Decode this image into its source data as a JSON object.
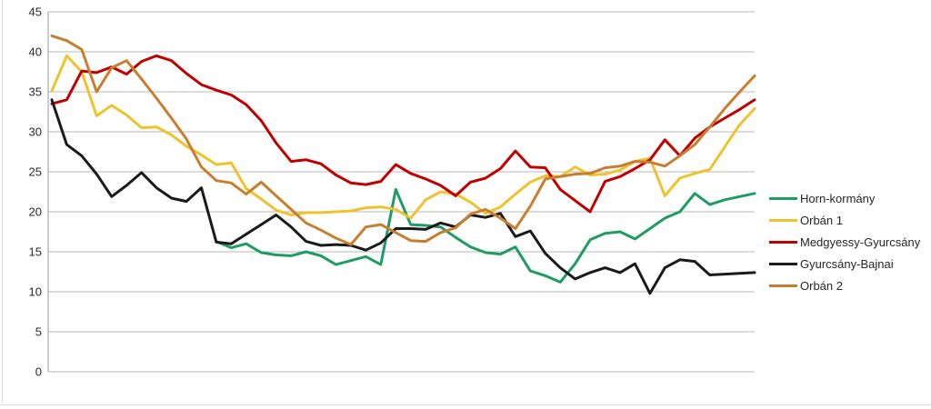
{
  "chart_data": {
    "type": "line",
    "title": "",
    "xlabel": "",
    "ylabel": "",
    "x_unit": "month-of-term (1-48), no x tick labels shown",
    "ylim": [
      0,
      45
    ],
    "yticks": [
      0,
      5,
      10,
      15,
      20,
      25,
      30,
      35,
      40,
      45
    ],
    "grid": true,
    "legend_position": "right",
    "background": "#ffffff",
    "gridline_color": "#b9b9b9",
    "series": [
      {
        "name": "Horn-kormány",
        "color": "#1E9C64",
        "values": [
          null,
          null,
          null,
          null,
          null,
          null,
          null,
          null,
          null,
          null,
          null,
          16.3,
          15.5,
          16.0,
          14.9,
          14.6,
          14.5,
          15.0,
          14.5,
          13.4,
          13.9,
          14.4,
          13.4,
          22.8,
          18.4,
          18.3,
          18.1,
          16.8,
          15.6,
          14.9,
          14.7,
          15.6,
          12.6,
          12.0,
          11.2,
          13.5,
          16.5,
          17.3,
          17.5,
          16.6,
          17.9,
          19.2,
          20.0,
          22.3,
          20.9,
          21.5,
          21.9,
          22.3
        ]
      },
      {
        "name": "Orbán 1",
        "color": "#EEC32D",
        "values": [
          35.1,
          39.5,
          37.5,
          32.0,
          33.3,
          32.1,
          30.5,
          30.6,
          29.6,
          28.2,
          27.1,
          25.9,
          26.1,
          22.9,
          21.6,
          20.2,
          19.6,
          19.9,
          19.9,
          20.0,
          20.1,
          20.5,
          20.6,
          20.3,
          19.2,
          21.5,
          22.5,
          22.2,
          21.2,
          19.8,
          20.6,
          22.2,
          23.7,
          24.5,
          24.4,
          25.6,
          24.6,
          24.7,
          25.2,
          26.3,
          26.7,
          22.0,
          24.2,
          24.8,
          25.3,
          28.1,
          30.9,
          32.9
        ]
      },
      {
        "name": "Medgyessy-Gyurcsány",
        "color": "#C00000",
        "values": [
          33.5,
          34.0,
          37.6,
          37.4,
          38.1,
          37.2,
          38.8,
          39.5,
          38.9,
          37.3,
          35.9,
          35.2,
          34.6,
          33.4,
          31.4,
          28.6,
          26.3,
          26.5,
          26.0,
          24.6,
          23.6,
          23.4,
          23.8,
          25.9,
          24.8,
          24.1,
          23.3,
          22.0,
          23.7,
          24.2,
          25.4,
          27.6,
          25.6,
          25.5,
          22.8,
          21.4,
          20.0,
          23.8,
          24.4,
          25.4,
          26.5,
          29.0,
          27.0,
          29.2,
          30.6,
          31.7,
          32.8,
          34.0
        ]
      },
      {
        "name": "Gyurcsány-Bajnai",
        "color": "#1A1A1A",
        "values": [
          34.0,
          28.4,
          27.0,
          24.7,
          21.9,
          23.3,
          24.9,
          23.0,
          21.7,
          21.3,
          23.0,
          16.2,
          16.0,
          17.2,
          18.4,
          19.6,
          18.1,
          16.3,
          15.8,
          15.9,
          15.8,
          15.2,
          16.1,
          17.9,
          17.9,
          17.8,
          18.6,
          18.1,
          19.6,
          19.3,
          19.8,
          16.9,
          17.6,
          14.8,
          13.0,
          11.6,
          12.4,
          13.0,
          12.4,
          13.5,
          9.8,
          13.0,
          14.0,
          13.8,
          12.1,
          12.2,
          12.3,
          12.4
        ]
      },
      {
        "name": "Orbán 2",
        "color": "#C87E2F",
        "values": [
          42.0,
          41.4,
          40.3,
          35.0,
          38.0,
          38.9,
          36.6,
          34.2,
          31.7,
          29.1,
          25.6,
          23.9,
          23.6,
          22.2,
          23.7,
          22.0,
          20.3,
          18.6,
          17.7,
          16.7,
          15.9,
          18.1,
          18.4,
          17.4,
          16.4,
          16.3,
          17.4,
          18.0,
          19.7,
          20.3,
          19.2,
          17.9,
          20.7,
          24.1,
          24.4,
          24.7,
          24.8,
          25.5,
          25.7,
          26.3,
          26.2,
          25.7,
          27.0,
          28.4,
          30.6,
          32.9,
          35.0,
          37.0
        ]
      }
    ]
  },
  "legend": {
    "items": [
      {
        "label": "Horn-kormány",
        "color": "#1E9C64"
      },
      {
        "label": "Orbán 1",
        "color": "#EEC32D"
      },
      {
        "label": "Medgyessy-Gyurcsány",
        "color": "#C00000"
      },
      {
        "label": "Gyurcsány-Bajnai",
        "color": "#1A1A1A"
      },
      {
        "label": "Orbán 2",
        "color": "#C87E2F"
      }
    ]
  }
}
